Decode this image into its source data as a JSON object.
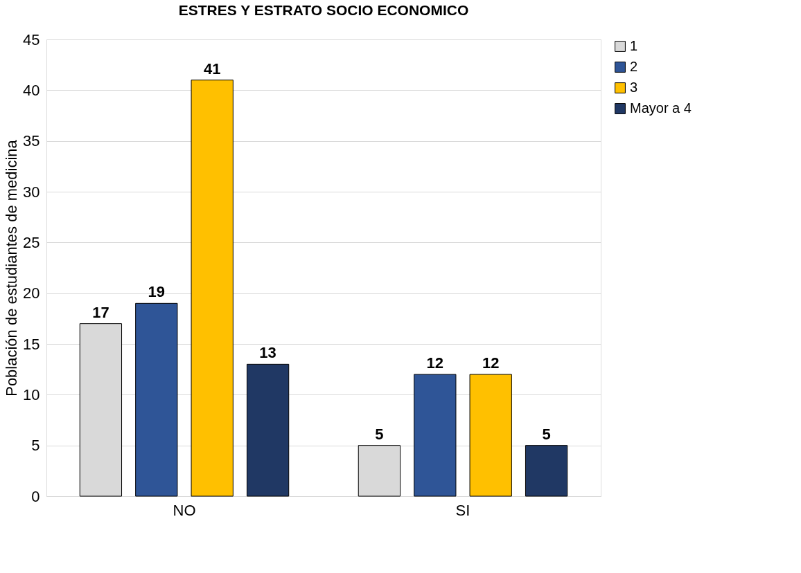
{
  "chart_data": {
    "type": "bar",
    "title": "ESTRES Y ESTRATO SOCIO ECONOMICO",
    "ylabel": "Población de estudiantes de medicina",
    "categories": [
      "NO",
      "SI"
    ],
    "series": [
      {
        "name": "1",
        "color": "#d9d9d9",
        "values": [
          17,
          5
        ]
      },
      {
        "name": "2",
        "color": "#2f5597",
        "values": [
          19,
          12
        ]
      },
      {
        "name": "3",
        "color": "#ffc000",
        "values": [
          41,
          12
        ]
      },
      {
        "name": "Mayor a 4",
        "color": "#203864",
        "values": [
          13,
          5
        ]
      }
    ],
    "ylim": [
      0,
      45
    ],
    "yticks": [
      0,
      5,
      10,
      15,
      20,
      25,
      30,
      35,
      40,
      45
    ],
    "grid": "y",
    "legend": "right",
    "data_labels": true
  }
}
